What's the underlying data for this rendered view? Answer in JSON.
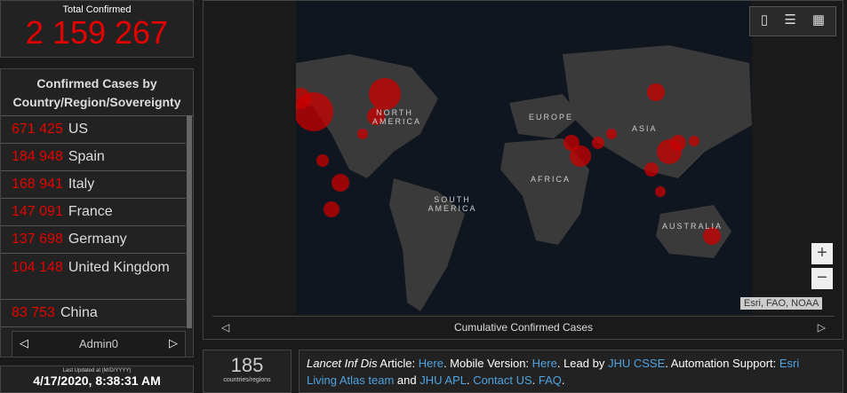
{
  "total": {
    "title": "Total Confirmed",
    "value": "2 159 267"
  },
  "cases_panel": {
    "title": "Confirmed Cases by Country/Region/Sovereignty",
    "rows": [
      [
        "671 425",
        "US"
      ],
      [
        "184 948",
        "Spain"
      ],
      [
        "168 941",
        "Italy"
      ],
      [
        "147 091",
        "France"
      ],
      [
        "137 698",
        "Germany"
      ],
      [
        "104 148",
        "United Kingdom"
      ],
      [
        "83 753",
        "China"
      ]
    ],
    "tab": "Admin0"
  },
  "updated": {
    "label": "Last Updated at (M/D/YYYY)",
    "value": "4/17/2020, 8:38:31 AM"
  },
  "map": {
    "labels": [
      "NORTH AMERICA",
      "EUROPE",
      "ASIA",
      "AFRICA",
      "SOUTH AMERICA",
      "AUSTRALIA"
    ],
    "attribution": "Esri, FAO, NOAA",
    "caption": "Cumulative Confirmed Cases"
  },
  "counter": {
    "value": "185",
    "label": "countries/regions"
  },
  "footer": [
    {
      "text": "Lancet Inf Dis",
      "style": "italic"
    },
    {
      "text": " Article: "
    },
    {
      "text": "Here",
      "style": "link"
    },
    {
      "text": ". Mobile Version: "
    },
    {
      "text": "Here",
      "style": "link"
    },
    {
      "text": ". Lead by "
    },
    {
      "text": "JHU CSSE",
      "style": "link"
    },
    {
      "text": ". Automation Support: "
    },
    {
      "text": "Esri Living Atlas team",
      "style": "link"
    },
    {
      "text": " and "
    },
    {
      "text": "JHU APL",
      "style": "link"
    },
    {
      "text": ". "
    },
    {
      "text": "Contact US",
      "style": "link"
    },
    {
      "text": ". "
    },
    {
      "text": "FAQ",
      "style": "link"
    },
    {
      "text": "."
    }
  ]
}
